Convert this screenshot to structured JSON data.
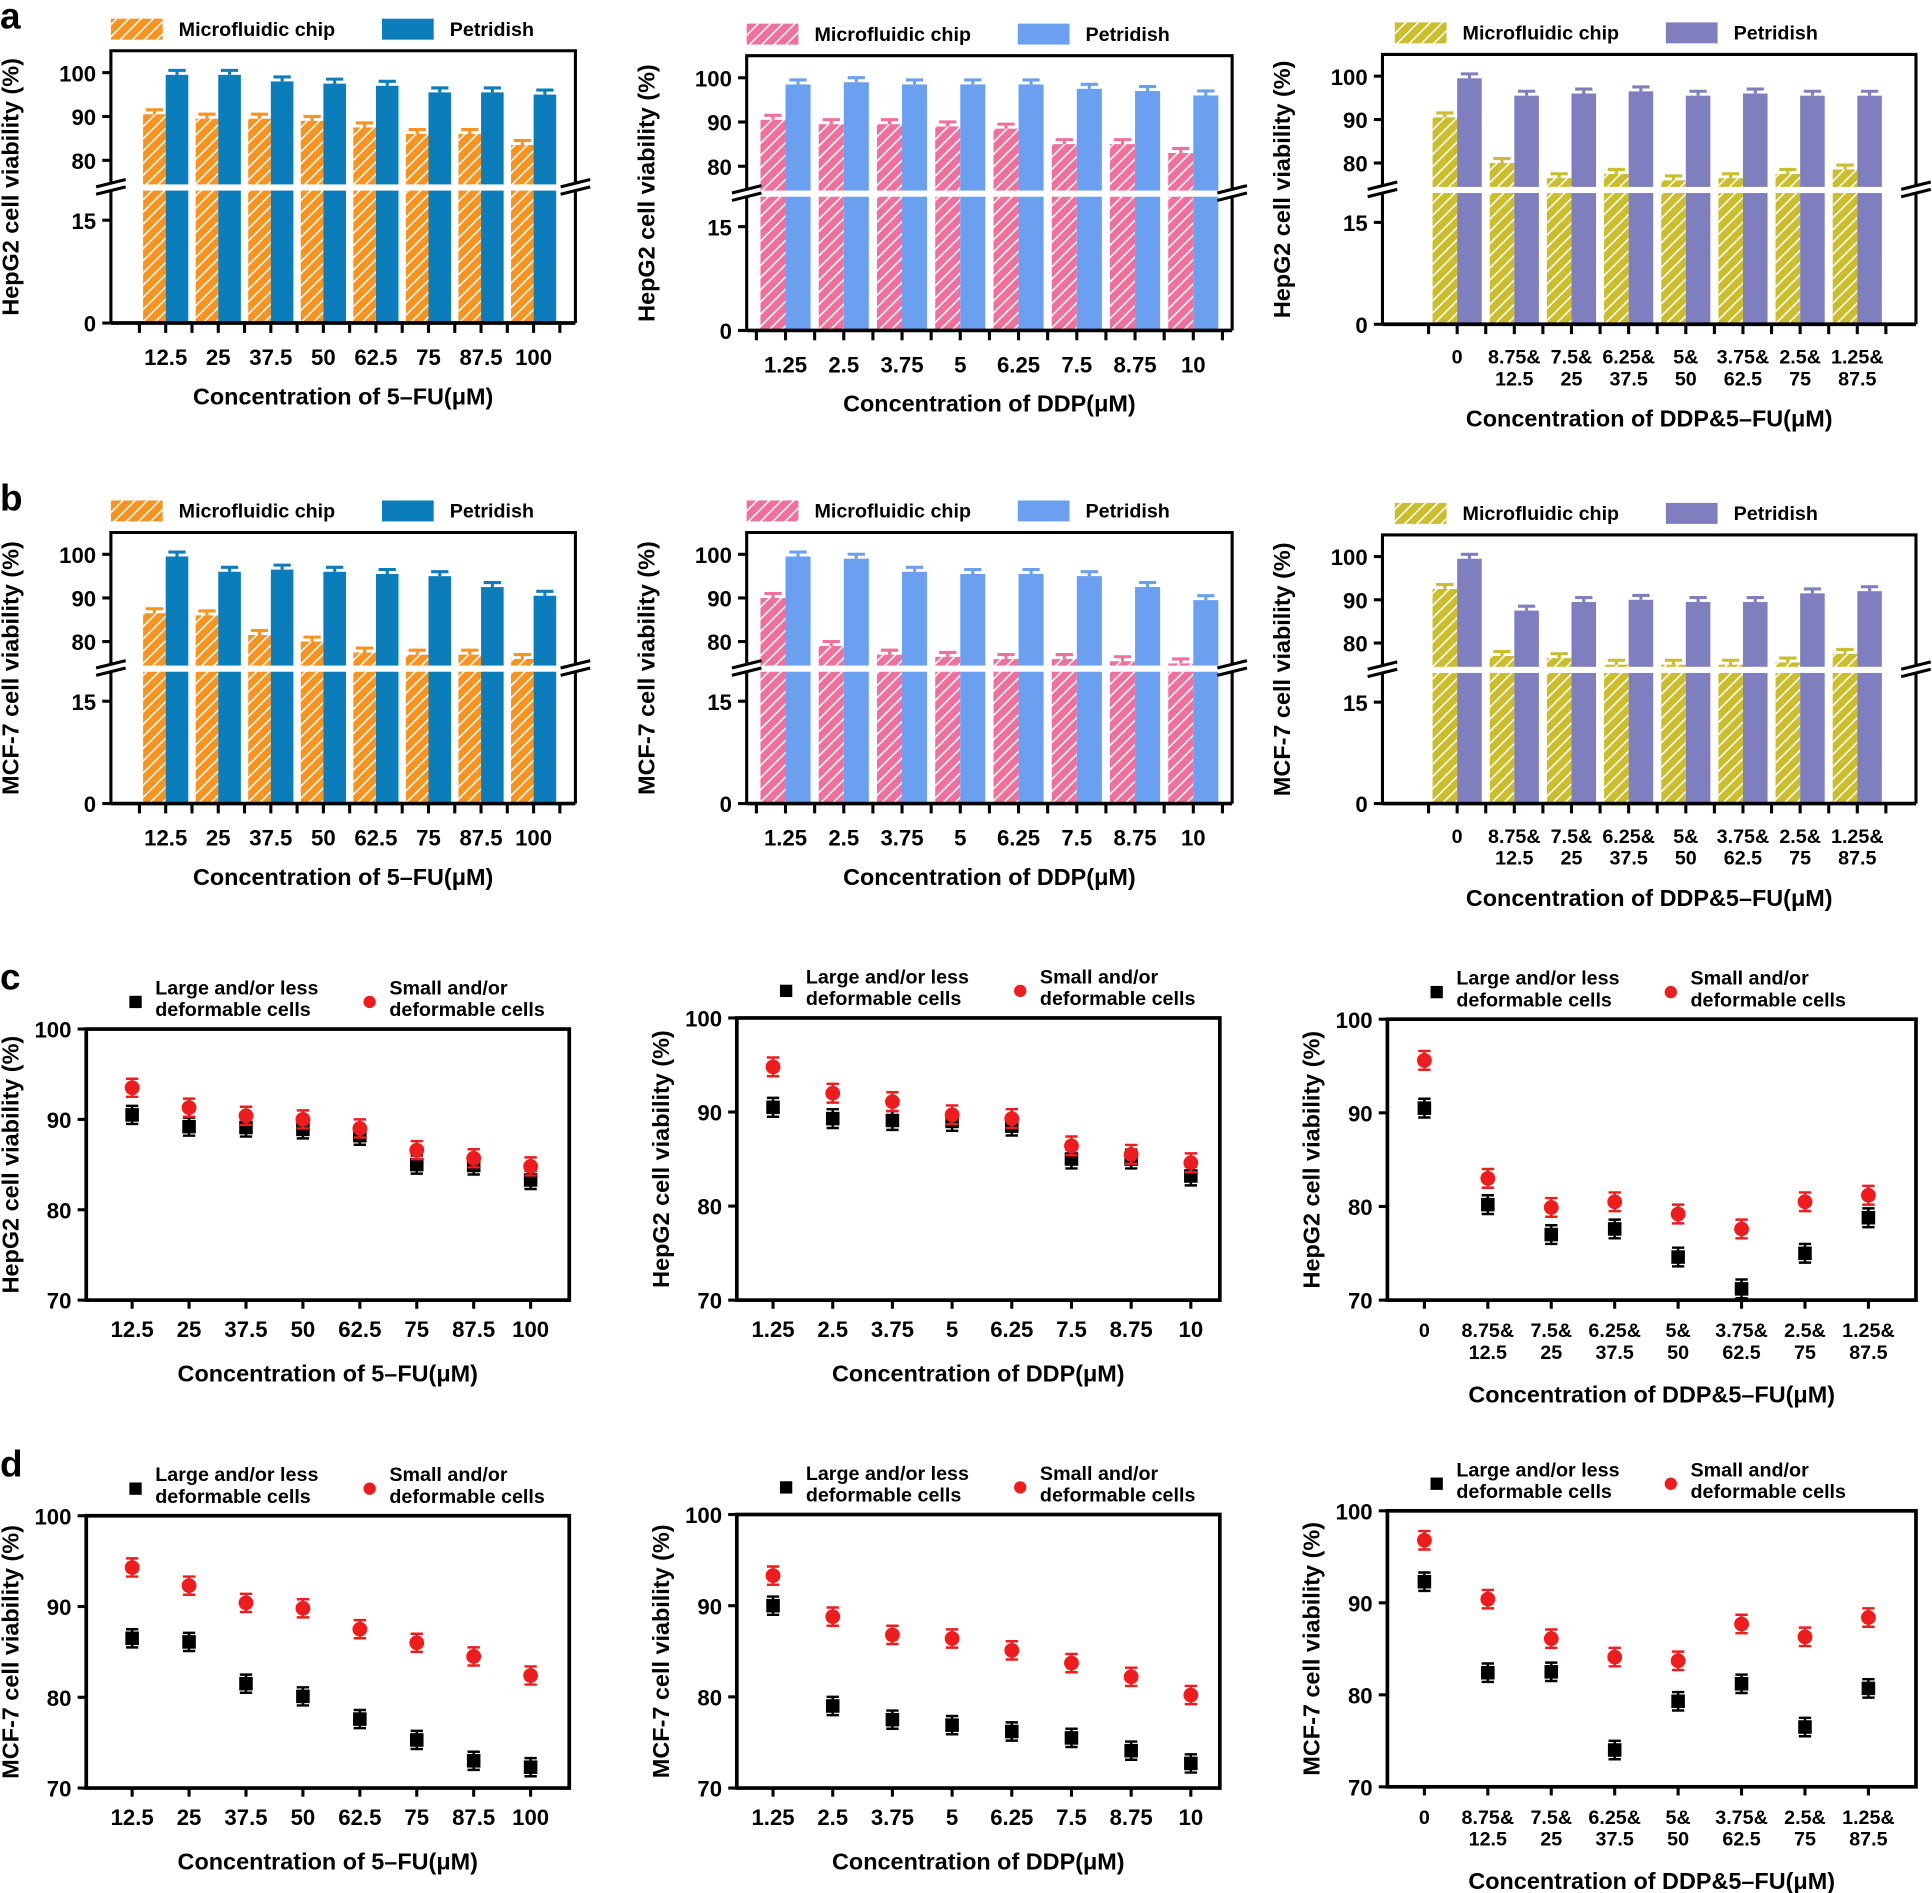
{
  "panels": [
    "a",
    "b",
    "c",
    "d"
  ],
  "chart_data": [
    {
      "type": "bar",
      "panel": "a",
      "broken_axis": true,
      "ylabel": "HepG2 cell viability (%)",
      "xlabel": "Concentration of 5–FU(μM)",
      "yticks_upper": [
        80,
        90,
        100
      ],
      "yticks_lower": [
        0,
        15
      ],
      "ylim_upper": [
        74.5,
        105
      ],
      "ylim_lower": [
        0,
        19.5
      ],
      "categories": [
        "12.5",
        "25",
        "37.5",
        "50",
        "62.5",
        "75",
        "87.5",
        "100"
      ],
      "series": [
        {
          "name": "Microfluidic chip",
          "color": "#f7931e",
          "hatched": true,
          "values": [
            90.5,
            89.5,
            89.5,
            89,
            87.5,
            86,
            86,
            83.5
          ],
          "error": 1
        },
        {
          "name": "Petridish",
          "color": "#0b7dbb",
          "values": [
            99.5,
            99.5,
            98,
            97.5,
            97,
            95.5,
            95.5,
            95
          ],
          "error": 1
        }
      ]
    },
    {
      "type": "bar",
      "panel": "",
      "broken_axis": true,
      "ylabel": "HepG2 cell viability (%)",
      "xlabel": "Concentration of DDP(μM)",
      "yticks_upper": [
        80,
        90,
        100
      ],
      "yticks_lower": [
        0,
        15
      ],
      "ylim_upper": [
        74.5,
        105
      ],
      "ylim_lower": [
        0,
        19.5
      ],
      "categories": [
        "1.25",
        "2.5",
        "3.75",
        "5",
        "6.25",
        "7.5",
        "8.75",
        "10"
      ],
      "series": [
        {
          "name": "Microfluidic chip",
          "color": "#f0709c",
          "hatched": true,
          "values": [
            90.5,
            89.5,
            89.5,
            89,
            88.5,
            85,
            85,
            83
          ],
          "error": 1
        },
        {
          "name": "Petridish",
          "color": "#6aa0ef",
          "values": [
            98.5,
            99,
            98.5,
            98.5,
            98.5,
            97.5,
            97,
            96
          ],
          "error": 1
        }
      ]
    },
    {
      "type": "bar",
      "panel": "",
      "broken_axis": true,
      "ylabel": "HepG2 cell viability (%)",
      "xlabel": "Concentration of DDP&5–FU(μM)",
      "yticks_upper": [
        80,
        90,
        100
      ],
      "yticks_lower": [
        0,
        15
      ],
      "ylim_upper": [
        74.5,
        105
      ],
      "ylim_lower": [
        0,
        19.5
      ],
      "categories": [
        "0",
        "8.75&\n12.5",
        "7.5&\n25",
        "6.25&\n37.5",
        "5&\n50",
        "3.75&\n62.5",
        "2.5&\n75",
        "1.25&\n87.5"
      ],
      "series": [
        {
          "name": "Microfluidic chip",
          "color": "#cbbd2c",
          "hatched": true,
          "values": [
            90.5,
            80,
            76.5,
            77.5,
            76,
            76.5,
            77.5,
            78.5
          ],
          "error": 1
        },
        {
          "name": "Petridish",
          "color": "#7f7fc0",
          "values": [
            99.5,
            95.5,
            96,
            96.5,
            95.5,
            96,
            95.5,
            95.5
          ],
          "error": 1
        }
      ]
    },
    {
      "type": "bar",
      "panel": "b",
      "broken_axis": true,
      "ylabel": "MCF-7 cell viability (%)",
      "xlabel": "Concentration of 5–FU(μM)",
      "yticks_upper": [
        80,
        90,
        100
      ],
      "yticks_lower": [
        0,
        15
      ],
      "ylim_upper": [
        74.5,
        105
      ],
      "ylim_lower": [
        0,
        19.5
      ],
      "categories": [
        "12.5",
        "25",
        "37.5",
        "50",
        "62.5",
        "75",
        "87.5",
        "100"
      ],
      "series": [
        {
          "name": "Microfluidic chip",
          "color": "#f7931e",
          "hatched": true,
          "values": [
            86.5,
            86,
            81.5,
            80,
            77.5,
            77,
            77,
            76
          ],
          "error": 1
        },
        {
          "name": "Petridish",
          "color": "#0b7dbb",
          "values": [
            99.5,
            96,
            96.5,
            96,
            95.5,
            95,
            92.5,
            90.5
          ],
          "error": 1
        }
      ]
    },
    {
      "type": "bar",
      "panel": "",
      "broken_axis": true,
      "ylabel": "MCF-7 cell viability (%)",
      "xlabel": "Concentration of DDP(μM)",
      "yticks_upper": [
        80,
        90,
        100
      ],
      "yticks_lower": [
        0,
        15
      ],
      "ylim_upper": [
        74.5,
        105
      ],
      "ylim_lower": [
        0,
        19.5
      ],
      "categories": [
        "1.25",
        "2.5",
        "3.75",
        "5",
        "6.25",
        "7.5",
        "8.75",
        "10"
      ],
      "series": [
        {
          "name": "Microfluidic chip",
          "color": "#f0709c",
          "hatched": true,
          "values": [
            90,
            79,
            77,
            76.5,
            76,
            76,
            75.5,
            75
          ],
          "error": 1
        },
        {
          "name": "Petridish",
          "color": "#6aa0ef",
          "values": [
            99.5,
            99,
            96,
            95.5,
            95.5,
            95,
            92.5,
            89.5
          ],
          "error": 1
        }
      ]
    },
    {
      "type": "bar",
      "panel": "",
      "broken_axis": true,
      "ylabel": "MCF-7 cell viability (%)",
      "xlabel": "Concentration of DDP&5–FU(μM)",
      "yticks_upper": [
        80,
        90,
        100
      ],
      "yticks_lower": [
        0,
        15
      ],
      "ylim_upper": [
        74.5,
        105
      ],
      "ylim_lower": [
        0,
        19.5
      ],
      "categories": [
        "0",
        "8.75&\n12.5",
        "7.5&\n25",
        "6.25&\n37.5",
        "5&\n50",
        "3.75&\n62.5",
        "2.5&\n75",
        "1.25&\n87.5"
      ],
      "series": [
        {
          "name": "Microfluidic chip",
          "color": "#cbbd2c",
          "hatched": true,
          "values": [
            92.5,
            77,
            76.5,
            75,
            75,
            75,
            75.5,
            77.5
          ],
          "error": 1
        },
        {
          "name": "Petridish",
          "color": "#7f7fc0",
          "values": [
            99.5,
            87.5,
            89.5,
            90,
            89.5,
            89.5,
            91.5,
            92
          ],
          "error": 1
        }
      ]
    },
    {
      "type": "scatter",
      "panel": "c",
      "ylabel": "HepG2 cell viability (%)",
      "xlabel": "Concentration of 5–FU(μM)",
      "ylim": [
        70,
        100
      ],
      "yticks": [
        70,
        80,
        90,
        100
      ],
      "categories": [
        "12.5",
        "25",
        "37.5",
        "50",
        "62.5",
        "75",
        "87.5",
        "100"
      ],
      "series": [
        {
          "name": "Large and/or less\ndeformable cells",
          "color": "#000000",
          "marker": "square",
          "values": [
            90.5,
            89.2,
            89.1,
            88.9,
            88.2,
            85,
            84.9,
            83.3
          ],
          "error": 1
        },
        {
          "name": "Small and/or\ndeformable cells",
          "color": "#ee1c1c",
          "marker": "circle",
          "values": [
            93.5,
            91.3,
            90.4,
            90,
            89,
            86.6,
            85.7,
            84.8
          ],
          "error": 1
        }
      ]
    },
    {
      "type": "scatter",
      "panel": "",
      "ylabel": "HepG2 cell viability (%)",
      "xlabel": "Concentration of DDP(μM)",
      "ylim": [
        70,
        100
      ],
      "yticks": [
        70,
        80,
        90,
        100
      ],
      "categories": [
        "1.25",
        "2.5",
        "3.75",
        "5",
        "6.25",
        "7.5",
        "8.75",
        "10"
      ],
      "series": [
        {
          "name": "Large and/or less\ndeformable cells",
          "color": "#000000",
          "marker": "square",
          "values": [
            90.5,
            89.3,
            89.1,
            89,
            88.5,
            85,
            85,
            83.2
          ],
          "error": 1
        },
        {
          "name": "Small and/or\ndeformable cells",
          "color": "#ee1c1c",
          "marker": "circle",
          "values": [
            94.8,
            92,
            91.1,
            89.7,
            89.3,
            86.4,
            85.5,
            84.6
          ],
          "error": 1
        }
      ]
    },
    {
      "type": "scatter",
      "panel": "",
      "ylabel": "HepG2 cell viability (%)",
      "xlabel": "Concentration of DDP&5–FU(μM)",
      "ylim": [
        70,
        100
      ],
      "yticks": [
        70,
        80,
        90,
        100
      ],
      "categories": [
        "0",
        "8.75&\n12.5",
        "7.5&\n25",
        "6.25&\n37.5",
        "5&\n50",
        "3.75&\n62.5",
        "2.5&\n75",
        "1.25&\n87.5"
      ],
      "series": [
        {
          "name": "Large and/or less\ndeformable cells",
          "color": "#000000",
          "marker": "square",
          "values": [
            90.5,
            80.2,
            77,
            77.6,
            74.6,
            71.2,
            75,
            78.8
          ],
          "error": 1
        },
        {
          "name": "Small and/or\ndeformable cells",
          "color": "#ee1c1c",
          "marker": "circle",
          "values": [
            95.6,
            83,
            79.9,
            80.5,
            79.2,
            77.6,
            80.5,
            81.2
          ],
          "error": 1
        }
      ]
    },
    {
      "type": "scatter",
      "panel": "d",
      "ylabel": "MCF-7 cell viability (%)",
      "xlabel": "Concentration of 5–FU(μM)",
      "ylim": [
        70,
        100
      ],
      "yticks": [
        70,
        80,
        90,
        100
      ],
      "categories": [
        "12.5",
        "25",
        "37.5",
        "50",
        "62.5",
        "75",
        "87.5",
        "100"
      ],
      "series": [
        {
          "name": "Large and/or less\ndeformable cells",
          "color": "#000000",
          "marker": "square",
          "values": [
            86.5,
            86.1,
            81.5,
            80.1,
            77.6,
            75.3,
            73,
            72.3
          ],
          "error": 1
        },
        {
          "name": "Small and/or\ndeformable cells",
          "color": "#ee1c1c",
          "marker": "circle",
          "values": [
            94.3,
            92.3,
            90.4,
            89.8,
            87.5,
            86,
            84.5,
            82.4
          ],
          "error": 1
        }
      ]
    },
    {
      "type": "scatter",
      "panel": "",
      "ylabel": "MCF-7 cell viability (%)",
      "xlabel": "Concentration of DDP(μM)",
      "ylim": [
        70,
        100
      ],
      "yticks": [
        70,
        80,
        90,
        100
      ],
      "categories": [
        "1.25",
        "2.5",
        "3.75",
        "5",
        "6.25",
        "7.5",
        "8.75",
        "10"
      ],
      "series": [
        {
          "name": "Large and/or less\ndeformable cells",
          "color": "#000000",
          "marker": "square",
          "values": [
            90,
            79,
            77.5,
            76.9,
            76.2,
            75.5,
            74.1,
            72.7
          ],
          "error": 1
        },
        {
          "name": "Small and/or\ndeformable cells",
          "color": "#ee1c1c",
          "marker": "circle",
          "values": [
            93.3,
            88.8,
            86.8,
            86.4,
            85.1,
            83.7,
            82.2,
            80.2
          ],
          "error": 1
        }
      ]
    },
    {
      "type": "scatter",
      "panel": "",
      "ylabel": "MCF-7 cell viability (%)",
      "xlabel": "Concentration of DDP&5–FU(μM)",
      "ylim": [
        70,
        100
      ],
      "yticks": [
        70,
        80,
        90,
        100
      ],
      "categories": [
        "0",
        "8.75&\n12.5",
        "7.5&\n25",
        "6.25&\n37.5",
        "5&\n50",
        "3.75&\n62.5",
        "2.5&\n75",
        "1.25&\n87.5"
      ],
      "series": [
        {
          "name": "Large and/or less\ndeformable cells",
          "color": "#000000",
          "marker": "square",
          "values": [
            92.3,
            82.4,
            82.5,
            74,
            79.3,
            81.2,
            76.5,
            80.7
          ],
          "error": 1
        },
        {
          "name": "Small and/or\ndeformable cells",
          "color": "#ee1c1c",
          "marker": "circle",
          "values": [
            96.8,
            90.4,
            86.1,
            84.1,
            83.7,
            87.7,
            86.3,
            88.4
          ],
          "error": 1
        }
      ]
    }
  ]
}
